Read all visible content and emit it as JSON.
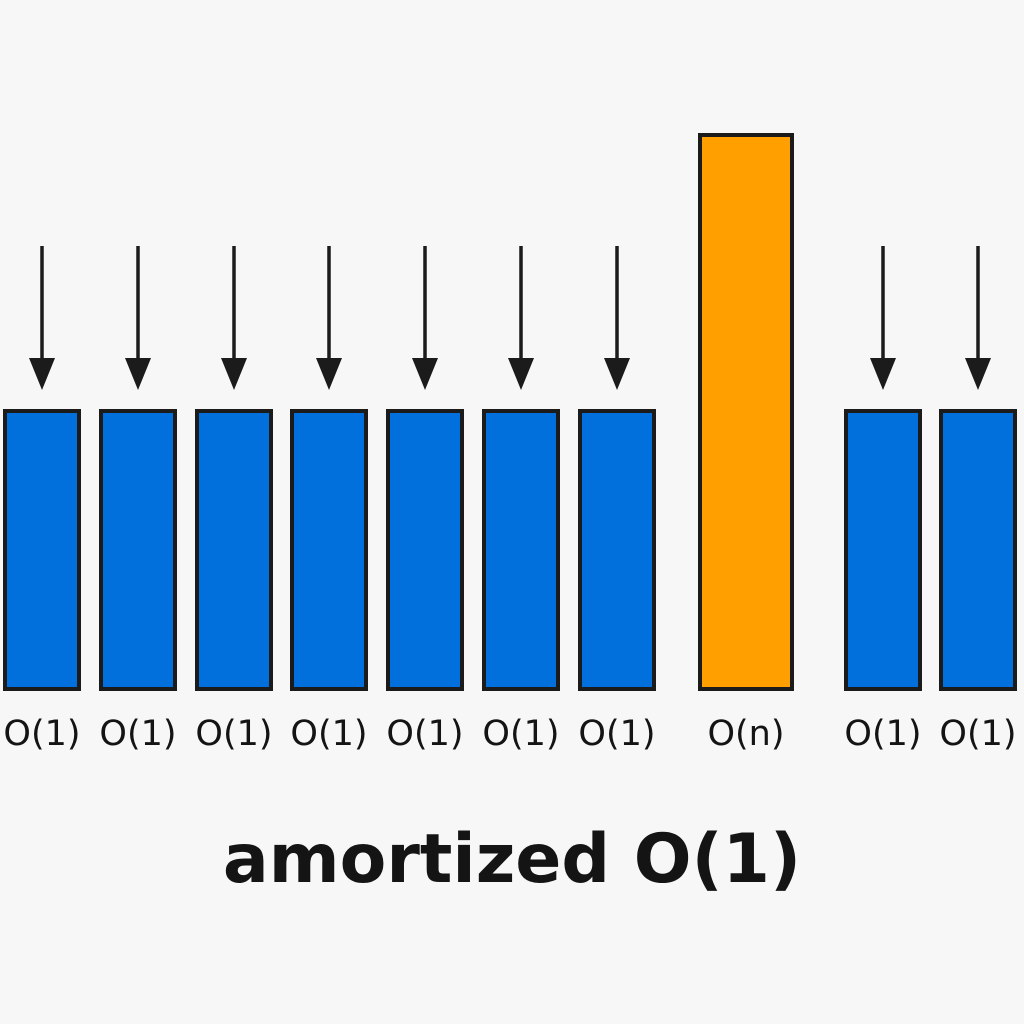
{
  "colors": {
    "background": "#f7f7f7",
    "cheap": "#0270dc",
    "expensive": "#ffa000",
    "outline": "#1b1b1b",
    "arrow": "#1b1b1b",
    "text": "#141414"
  },
  "operations": [
    {
      "kind": "cheap",
      "label": "O(1)",
      "arrow": true
    },
    {
      "kind": "cheap",
      "label": "O(1)",
      "arrow": true
    },
    {
      "kind": "cheap",
      "label": "O(1)",
      "arrow": true
    },
    {
      "kind": "cheap",
      "label": "O(1)",
      "arrow": true
    },
    {
      "kind": "cheap",
      "label": "O(1)",
      "arrow": true
    },
    {
      "kind": "cheap",
      "label": "O(1)",
      "arrow": true
    },
    {
      "kind": "cheap",
      "label": "O(1)",
      "arrow": true
    },
    {
      "kind": "expensive",
      "label": "O(n)",
      "arrow": false
    },
    {
      "kind": "cheap",
      "label": "O(1)",
      "arrow": true
    },
    {
      "kind": "cheap",
      "label": "O(1)",
      "arrow": true
    }
  ],
  "caption": "amortized O(1)"
}
